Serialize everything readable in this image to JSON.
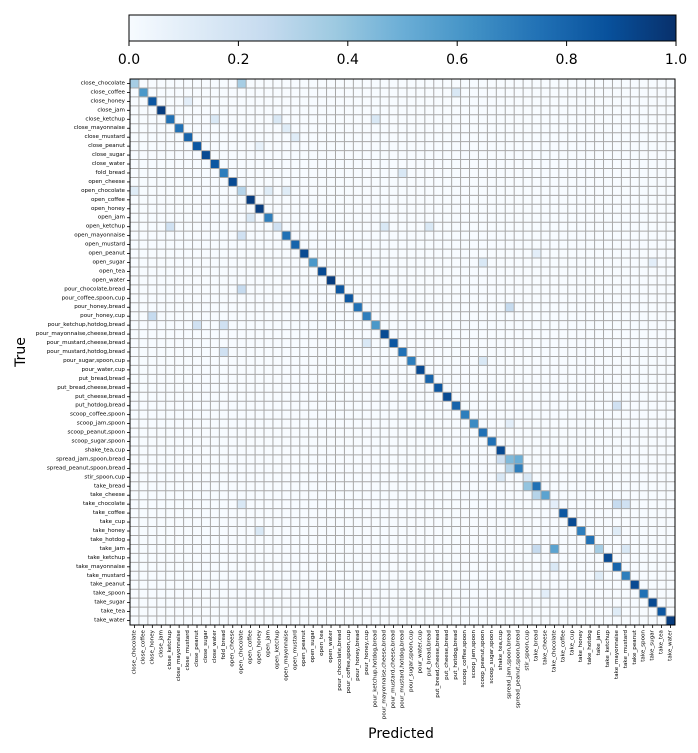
{
  "chart_data": {
    "type": "heatmap",
    "title": "",
    "xlabel": "Predicted",
    "ylabel": "True",
    "colorbar": {
      "colormap": "Blues",
      "range": [
        0.0,
        1.0
      ],
      "ticks": [
        "0.0",
        "0.2",
        "0.4",
        "0.6",
        "0.8",
        "1.0"
      ]
    },
    "grid": true,
    "labels": [
      "close_chocolate",
      "close_coffee",
      "close_honey",
      "close_jam",
      "close_ketchup",
      "close_mayonnaise",
      "close_mustard",
      "close_peanut",
      "close_sugar",
      "close_water",
      "fold_bread",
      "open_cheese",
      "open_chocolate",
      "open_coffee",
      "open_honey",
      "open_jam",
      "open_ketchup",
      "open_mayonnaise",
      "open_mustard",
      "open_peanut",
      "open_sugar",
      "open_tea",
      "open_water",
      "pour_chocolate,bread",
      "pour_coffee,spoon,cup",
      "pour_honey,bread",
      "pour_honey,cup",
      "pour_ketchup,hotdog,bread",
      "pour_mayonnaise,cheese,bread",
      "pour_mustard,cheese,bread",
      "pour_mustard,hotdog,bread",
      "pour_sugar,spoon,cup",
      "pour_water,cup",
      "put_bread,bread",
      "put_bread,cheese,bread",
      "put_cheese,bread",
      "put_hotdog,bread",
      "scoop_coffee,spoon",
      "scoop_jam,spoon",
      "scoop_peanut,spoon",
      "scoop_sugar,spoon",
      "shake_tea,cup",
      "spread_jam,spoon,bread",
      "spread_peanut,spoon,bread",
      "stir_spoon,cup",
      "take_bread",
      "take_cheese",
      "take_chocolate",
      "take_coffee",
      "take_cup",
      "take_honey",
      "take_hotdog",
      "take_jam",
      "take_ketchup",
      "take_mayonnaise",
      "take_mustard",
      "take_peanut",
      "take_spoon",
      "take_sugar",
      "take_tea",
      "take_water"
    ],
    "diagonal": [
      0.35,
      0.6,
      0.85,
      0.95,
      0.75,
      0.75,
      0.8,
      0.85,
      0.9,
      0.85,
      0.7,
      0.9,
      0.3,
      0.95,
      0.95,
      0.7,
      0.2,
      0.75,
      0.8,
      0.9,
      0.6,
      0.9,
      0.95,
      0.85,
      0.85,
      0.75,
      0.7,
      0.6,
      0.9,
      0.85,
      0.75,
      0.7,
      0.9,
      0.8,
      0.85,
      0.9,
      0.8,
      0.7,
      0.65,
      0.75,
      0.75,
      0.9,
      0.45,
      0.7,
      0.15,
      0.75,
      0.55,
      0.1,
      0.85,
      0.9,
      0.7,
      0.75,
      0.35,
      0.9,
      0.8,
      0.7,
      0.9,
      0.75,
      0.9,
      0.85,
      0.95
    ],
    "off_diagonal": [
      {
        "row": 0,
        "col": 12,
        "value": 0.35
      },
      {
        "row": 1,
        "col": 36,
        "value": 0.15
      },
      {
        "row": 2,
        "col": 6,
        "value": 0.1
      },
      {
        "row": 4,
        "col": 9,
        "value": 0.15
      },
      {
        "row": 4,
        "col": 16,
        "value": 0.15
      },
      {
        "row": 4,
        "col": 27,
        "value": 0.15
      },
      {
        "row": 5,
        "col": 17,
        "value": 0.12
      },
      {
        "row": 6,
        "col": 18,
        "value": 0.12
      },
      {
        "row": 7,
        "col": 14,
        "value": 0.08
      },
      {
        "row": 10,
        "col": 30,
        "value": 0.15
      },
      {
        "row": 12,
        "col": 0,
        "value": 0.12
      },
      {
        "row": 12,
        "col": 15,
        "value": 0.12
      },
      {
        "row": 12,
        "col": 17,
        "value": 0.12
      },
      {
        "row": 15,
        "col": 13,
        "value": 0.15
      },
      {
        "row": 16,
        "col": 4,
        "value": 0.2
      },
      {
        "row": 16,
        "col": 28,
        "value": 0.15
      },
      {
        "row": 16,
        "col": 33,
        "value": 0.15
      },
      {
        "row": 17,
        "col": 12,
        "value": 0.2
      },
      {
        "row": 19,
        "col": 45,
        "value": 0.1
      },
      {
        "row": 20,
        "col": 39,
        "value": 0.15
      },
      {
        "row": 20,
        "col": 58,
        "value": 0.1
      },
      {
        "row": 23,
        "col": 12,
        "value": 0.25
      },
      {
        "row": 25,
        "col": 42,
        "value": 0.25
      },
      {
        "row": 26,
        "col": 2,
        "value": 0.25
      },
      {
        "row": 27,
        "col": 7,
        "value": 0.2
      },
      {
        "row": 27,
        "col": 10,
        "value": 0.2
      },
      {
        "row": 29,
        "col": 26,
        "value": 0.15
      },
      {
        "row": 30,
        "col": 10,
        "value": 0.2
      },
      {
        "row": 31,
        "col": 39,
        "value": 0.15
      },
      {
        "row": 36,
        "col": 54,
        "value": 0.2
      },
      {
        "row": 38,
        "col": 42,
        "value": 0.1
      },
      {
        "row": 42,
        "col": 41,
        "value": 0.2
      },
      {
        "row": 42,
        "col": 43,
        "value": 0.5
      },
      {
        "row": 43,
        "col": 42,
        "value": 0.3
      },
      {
        "row": 44,
        "col": 41,
        "value": 0.15
      },
      {
        "row": 45,
        "col": 44,
        "value": 0.4
      },
      {
        "row": 46,
        "col": 45,
        "value": 0.3
      },
      {
        "row": 47,
        "col": 12,
        "value": 0.15
      },
      {
        "row": 47,
        "col": 54,
        "value": 0.25
      },
      {
        "row": 47,
        "col": 55,
        "value": 0.2
      },
      {
        "row": 50,
        "col": 14,
        "value": 0.15
      },
      {
        "row": 50,
        "col": 54,
        "value": 0.12
      },
      {
        "row": 52,
        "col": 45,
        "value": 0.25
      },
      {
        "row": 52,
        "col": 47,
        "value": 0.55
      },
      {
        "row": 52,
        "col": 55,
        "value": 0.15
      },
      {
        "row": 54,
        "col": 47,
        "value": 0.15
      },
      {
        "row": 55,
        "col": 52,
        "value": 0.12
      },
      {
        "row": 57,
        "col": 46,
        "value": 0.1
      },
      {
        "row": 59,
        "col": 54,
        "value": 0.12
      }
    ]
  }
}
